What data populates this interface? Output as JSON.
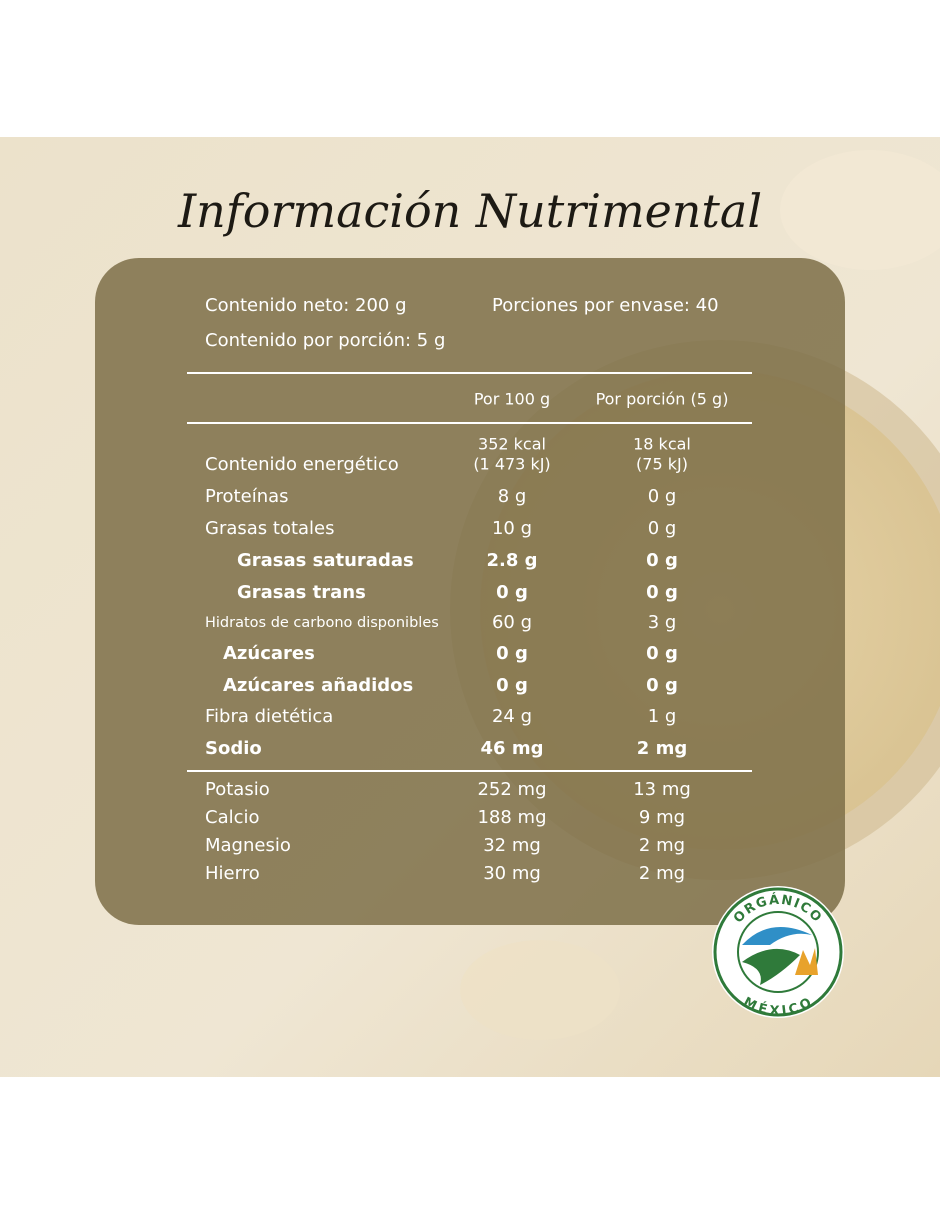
{
  "title": "Información Nutrimental",
  "info": {
    "net": "Contenido neto: 200 g",
    "servings": "Porciones por envase: 40",
    "per_serving": "Contenido por porción: 5 g"
  },
  "table": {
    "header": [
      "Por 100 g",
      "Por porción (5 g)"
    ],
    "energy": {
      "label": "Contenido energético",
      "per100": [
        "352 kcal",
        "(1 473 kJ)"
      ],
      "portion": [
        "18 kcal",
        "(75 kJ)"
      ]
    },
    "rows": [
      [
        "Proteínas",
        "8 g",
        "0 g"
      ],
      [
        "Grasas totales",
        "10 g",
        "0 g"
      ],
      [
        "Grasas saturadas",
        "2.8 g",
        "0 g"
      ],
      [
        "Grasas trans",
        "0 g",
        "0 g"
      ],
      [
        "Hidratos de carbono disponibles",
        "60 g",
        "3 g"
      ],
      [
        "Azúcares",
        "0 g",
        "0 g"
      ],
      [
        "Azúcares añadidos",
        "0 g",
        "0 g"
      ],
      [
        "Fibra dietética",
        "24 g",
        "1 g"
      ],
      [
        "Sodio",
        "46 mg",
        "2 mg"
      ]
    ],
    "minerals": [
      [
        "Potasio",
        "252 mg",
        "13 mg"
      ],
      [
        "Calcio",
        "188 mg",
        "9 mg"
      ],
      [
        "Magnesio",
        "32 mg",
        "2 mg"
      ],
      [
        "Hierro",
        "30 mg",
        "2 mg"
      ]
    ]
  },
  "badge": {
    "top": "ORGÁNICO",
    "bottom": "MÉXICO"
  }
}
